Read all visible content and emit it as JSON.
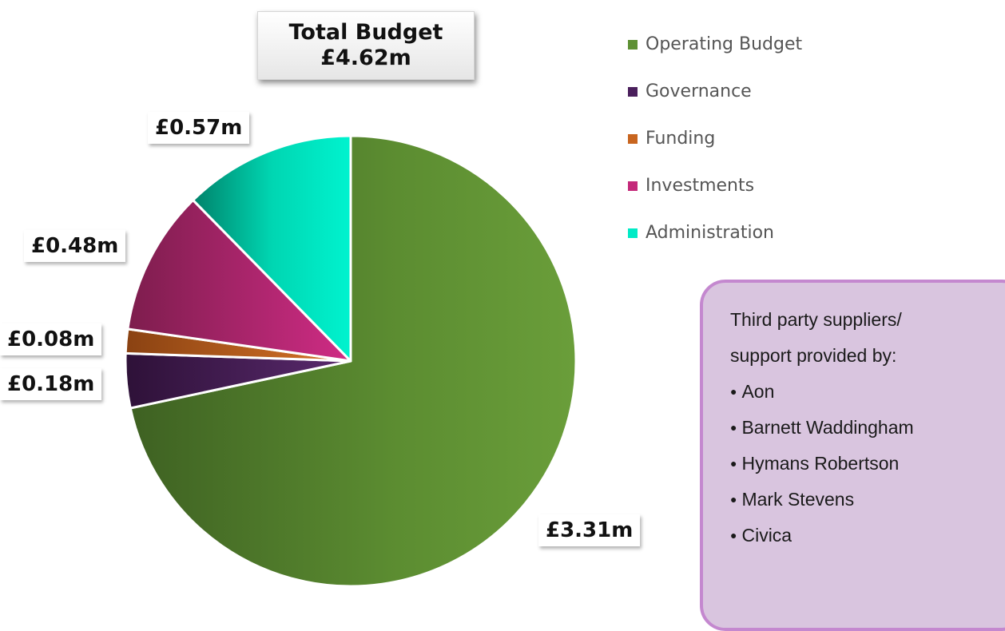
{
  "chart_data": {
    "type": "pie",
    "title": "Total Budget",
    "subtitle": "£4.62m",
    "legend_position": "right",
    "slices": [
      {
        "name": "Operating Budget",
        "value": 3.31,
        "label": "£3.31m",
        "color": "#5e9134"
      },
      {
        "name": "Governance",
        "value": 0.18,
        "label": "£0.18m",
        "color": "#4a1f5c"
      },
      {
        "name": "Funding",
        "value": 0.08,
        "label": "£0.08m",
        "color": "#c8651f"
      },
      {
        "name": "Investments",
        "value": 0.48,
        "label": "£0.48m",
        "color": "#c4297a"
      },
      {
        "name": "Administration",
        "value": 0.57,
        "label": "£0.57m",
        "color": "#00ebc6"
      }
    ]
  },
  "suppliers": {
    "heading": [
      "Third party suppliers/",
      "support provided by:"
    ],
    "items": [
      "Aon",
      "Barnett Waddingham",
      "Hymans Robertson",
      "Mark Stevens",
      "Civica"
    ]
  }
}
